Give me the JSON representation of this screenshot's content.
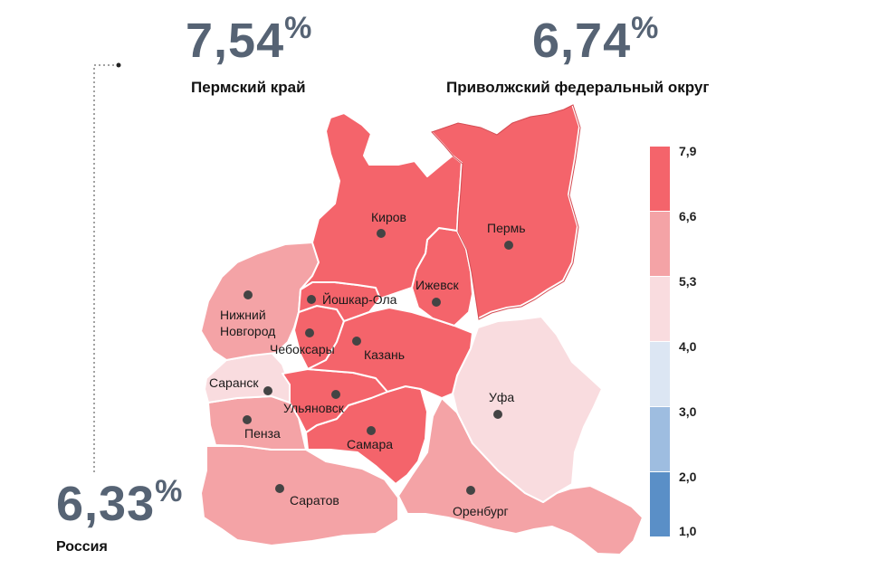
{
  "headline": {
    "perm": {
      "value": "7,54",
      "unit": "%",
      "label": "Пермский край"
    },
    "pfo": {
      "value": "6,74",
      "unit": "%",
      "label": "Приволжский федеральный округ"
    },
    "russia": {
      "value": "6,33",
      "unit": "%",
      "label": "Россия"
    }
  },
  "legend": {
    "ticks": [
      "7,9",
      "6,6",
      "5,3",
      "4,0",
      "3,0",
      "2,0",
      "1,0"
    ],
    "bins": [
      {
        "from": 6.6,
        "to": 7.9,
        "color": "#f4646b"
      },
      {
        "from": 5.3,
        "to": 6.6,
        "color": "#f4a3a6"
      },
      {
        "from": 4.0,
        "to": 5.3,
        "color": "#f9dcdf"
      },
      {
        "from": 3.0,
        "to": 4.0,
        "color": "#dce6f3"
      },
      {
        "from": 2.0,
        "to": 3.0,
        "color": "#9ebde0"
      },
      {
        "from": 1.0,
        "to": 2.0,
        "color": "#5a8fc7"
      }
    ]
  },
  "colors": {
    "high": "#f4646b",
    "mid": "#f4a3a6",
    "low": "#f9dcdf",
    "border": "#ffffff",
    "stat_text": "#566374"
  },
  "regions": [
    {
      "id": "kirov",
      "city": "Киров",
      "bin": "high"
    },
    {
      "id": "perm",
      "city": "Пермь",
      "bin": "high"
    },
    {
      "id": "udmurtia",
      "city": "Ижевск",
      "bin": "high"
    },
    {
      "id": "mari-el",
      "city": "Йошкар-Ола",
      "bin": "high"
    },
    {
      "id": "chuvashia",
      "city": "Чебоксары",
      "bin": "high"
    },
    {
      "id": "tatarstan",
      "city": "Казань",
      "bin": "high"
    },
    {
      "id": "ulyanovsk",
      "city": "Ульяновск",
      "bin": "high"
    },
    {
      "id": "samara",
      "city": "Самара",
      "bin": "high"
    },
    {
      "id": "nizhny",
      "city": "Нижний Новгород",
      "city_lines": [
        "Нижний",
        "Новгород"
      ],
      "bin": "mid"
    },
    {
      "id": "mordovia",
      "city": "Саранск",
      "bin": "low"
    },
    {
      "id": "penza",
      "city": "Пенза",
      "bin": "mid"
    },
    {
      "id": "saratov",
      "city": "Саратов",
      "bin": "mid"
    },
    {
      "id": "orenburg",
      "city": "Оренбург",
      "bin": "mid"
    },
    {
      "id": "bashkortostan",
      "city": "Уфа",
      "bin": "low"
    }
  ]
}
